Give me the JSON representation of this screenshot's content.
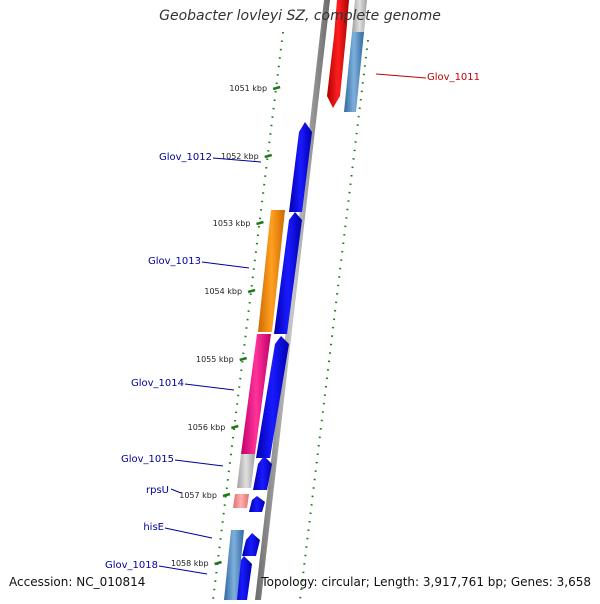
{
  "title": "Geobacter lovleyi SZ, complete genome",
  "footer": {
    "accession": "Accession: NC_010814",
    "summary": "Topology: circular; Length: 3,917,761 bp; Genes: 3,658"
  },
  "colors": {
    "backbone": "#8c8c8c",
    "forward_cds": "#0000ee",
    "tick_dots": "#1f7a1f",
    "label_blue": "#00009c",
    "label_red": "#c00000"
  },
  "ticks": [
    {
      "label": "1051 kbp",
      "position_kbp": 1051
    },
    {
      "label": "1052 kbp",
      "position_kbp": 1052
    },
    {
      "label": "1053 kbp",
      "position_kbp": 1053
    },
    {
      "label": "1054 kbp",
      "position_kbp": 1054
    },
    {
      "label": "1055 kbp",
      "position_kbp": 1055
    },
    {
      "label": "1056 kbp",
      "position_kbp": 1056
    },
    {
      "label": "1057 kbp",
      "position_kbp": 1057
    },
    {
      "label": "1058 kbp",
      "position_kbp": 1058
    }
  ],
  "gene_labels": [
    {
      "name": "Glov_1011",
      "color": "#c00000"
    },
    {
      "name": "Glov_1012",
      "color": "#00009c"
    },
    {
      "name": "Glov_1013",
      "color": "#00009c"
    },
    {
      "name": "Glov_1014",
      "color": "#00009c"
    },
    {
      "name": "Glov_1015",
      "color": "#00009c"
    },
    {
      "name": "rpsU",
      "color": "#00009c"
    },
    {
      "name": "hisE",
      "color": "#00009c"
    },
    {
      "name": "Glov_1018",
      "color": "#00009c"
    }
  ]
}
